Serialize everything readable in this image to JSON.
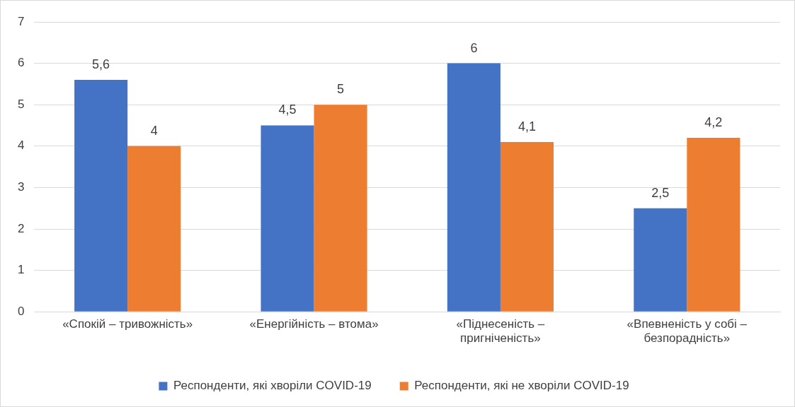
{
  "chart_data": {
    "type": "bar",
    "categories": [
      "«Спокій – тривожність»",
      "«Енергійність – втома»",
      "«Піднесеність – пригніченість»",
      "«Впевненість у собі – безпорадність»"
    ],
    "series": [
      {
        "name": "Респонденти, які хворіли COVID-19",
        "color": "#4472c4",
        "values": [
          5.6,
          4.5,
          6,
          2.5
        ],
        "value_labels": [
          "5,6",
          "4,5",
          "6",
          "2,5"
        ]
      },
      {
        "name": "Респонденти, які не хворіли COVID-19",
        "color": "#ed7d31",
        "values": [
          4,
          5,
          4.1,
          4.2
        ],
        "value_labels": [
          "4",
          "5",
          "4,1",
          "4,2"
        ]
      }
    ],
    "ylim": [
      0,
      7
    ],
    "yticks": [
      0,
      1,
      2,
      3,
      4,
      5,
      6,
      7
    ],
    "grid": "y",
    "legend": "bottom"
  }
}
